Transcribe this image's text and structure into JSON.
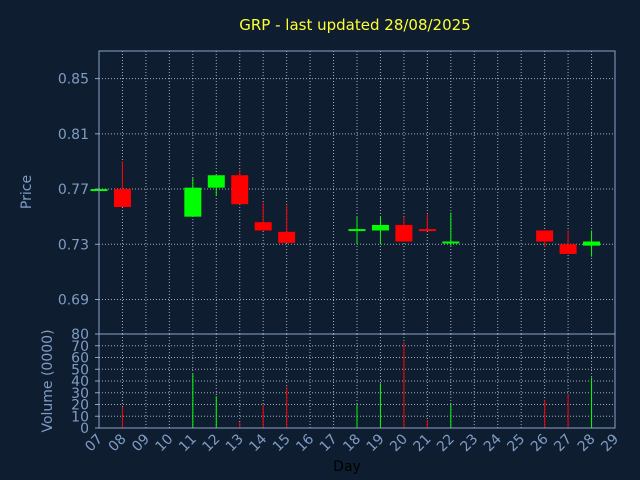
{
  "colors": {
    "background": "#0e1e30",
    "title": "#ffff33",
    "axis_text": "#7f9cc4",
    "up": "#00ff00",
    "down": "#ff0000",
    "grid": "#c8d2e0"
  },
  "chart_data": {
    "type": "candlestick",
    "title": "GRP - last updated 28/08/2025",
    "xlabel": "Day",
    "x_ticks": [
      "07",
      "08",
      "09",
      "10",
      "11",
      "12",
      "13",
      "14",
      "15",
      "16",
      "17",
      "18",
      "19",
      "20",
      "21",
      "22",
      "23",
      "24",
      "25",
      "26",
      "27",
      "28",
      "29"
    ],
    "grid": true,
    "price_panel": {
      "ylabel": "Price",
      "ylim": [
        0.665,
        0.87
      ],
      "y_ticks": [
        "0.85",
        "0.81",
        "0.77",
        "0.73",
        "0.69"
      ],
      "series": [
        {
          "day": "07",
          "open": 0.77,
          "close": 0.77,
          "high": 0.77,
          "low": 0.77
        },
        {
          "day": "08",
          "open": 0.77,
          "close": 0.757,
          "high": 0.79,
          "low": 0.757
        },
        {
          "day": "11",
          "open": 0.75,
          "close": 0.771,
          "high": 0.778,
          "low": 0.75
        },
        {
          "day": "12",
          "open": 0.771,
          "close": 0.78,
          "high": 0.78,
          "low": 0.765
        },
        {
          "day": "13",
          "open": 0.78,
          "close": 0.759,
          "high": 0.784,
          "low": 0.759
        },
        {
          "day": "14",
          "open": 0.746,
          "close": 0.74,
          "high": 0.76,
          "low": 0.74
        },
        {
          "day": "15",
          "open": 0.739,
          "close": 0.731,
          "high": 0.758,
          "low": 0.731
        },
        {
          "day": "18",
          "open": 0.74,
          "close": 0.741,
          "high": 0.75,
          "low": 0.73
        },
        {
          "day": "19",
          "open": 0.74,
          "close": 0.744,
          "high": 0.75,
          "low": 0.73
        },
        {
          "day": "20",
          "open": 0.744,
          "close": 0.732,
          "high": 0.75,
          "low": 0.732
        },
        {
          "day": "21",
          "open": 0.741,
          "close": 0.74,
          "high": 0.752,
          "low": 0.74
        },
        {
          "day": "22",
          "open": 0.731,
          "close": 0.732,
          "high": 0.753,
          "low": 0.729
        },
        {
          "day": "26",
          "open": 0.74,
          "close": 0.732,
          "high": 0.74,
          "low": 0.728
        },
        {
          "day": "27",
          "open": 0.73,
          "close": 0.723,
          "high": 0.74,
          "low": 0.723
        },
        {
          "day": "28",
          "open": 0.729,
          "close": 0.732,
          "high": 0.74,
          "low": 0.721
        }
      ]
    },
    "volume_panel": {
      "ylabel": "Volume (0000)",
      "ylim": [
        0,
        80
      ],
      "y_ticks": [
        "80",
        "70",
        "60",
        "50",
        "40",
        "30",
        "20",
        "10",
        "0"
      ],
      "series": [
        {
          "day": "08",
          "volume": 18,
          "direction": "down"
        },
        {
          "day": "11",
          "volume": 46,
          "direction": "up"
        },
        {
          "day": "12",
          "volume": 27,
          "direction": "up"
        },
        {
          "day": "13",
          "volume": 5,
          "direction": "down"
        },
        {
          "day": "14",
          "volume": 20,
          "direction": "down"
        },
        {
          "day": "15",
          "volume": 35,
          "direction": "down"
        },
        {
          "day": "18",
          "volume": 20,
          "direction": "up"
        },
        {
          "day": "19",
          "volume": 38,
          "direction": "up"
        },
        {
          "day": "20",
          "volume": 73,
          "direction": "down"
        },
        {
          "day": "21",
          "volume": 7,
          "direction": "down"
        },
        {
          "day": "22",
          "volume": 20,
          "direction": "up"
        },
        {
          "day": "26",
          "volume": 24,
          "direction": "down"
        },
        {
          "day": "27",
          "volume": 29,
          "direction": "down"
        },
        {
          "day": "28",
          "volume": 43,
          "direction": "up"
        }
      ]
    }
  }
}
